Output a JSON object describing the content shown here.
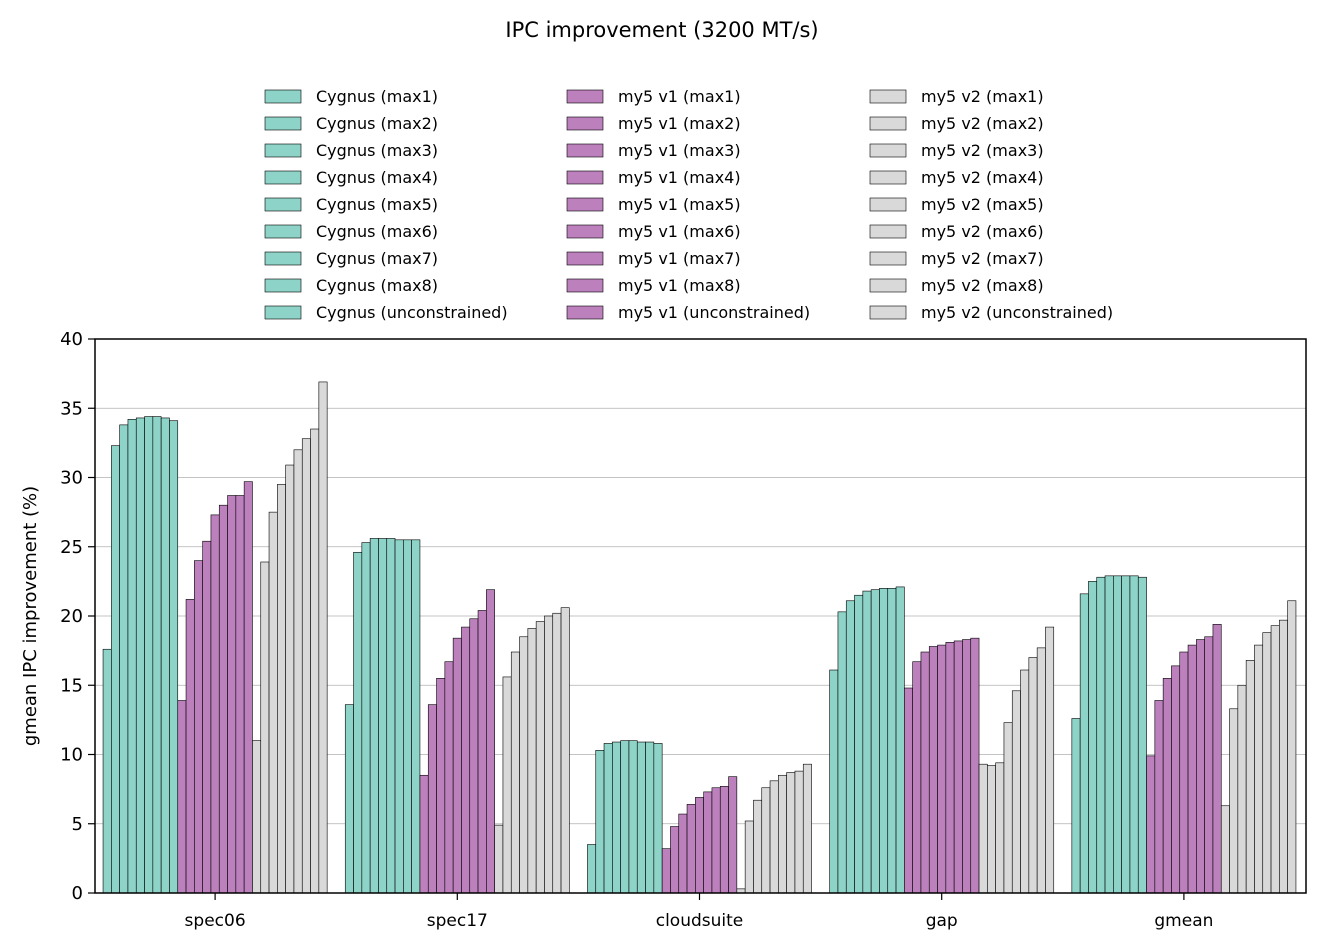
{
  "chart_data": {
    "type": "bar",
    "title": "IPC improvement (3200 MT/s)",
    "xlabel": "",
    "ylabel": "gmean IPC improvement (%)",
    "ylim": [
      0,
      40
    ],
    "yticks": [
      0,
      5,
      10,
      15,
      20,
      25,
      30,
      35,
      40
    ],
    "grid": "horizontal",
    "legend_placement": "top-center, 3 columns, outside plot",
    "categories": [
      "spec06",
      "spec17",
      "cloudsuite",
      "gap",
      "gmean"
    ],
    "colors": {
      "cygnus": "#8dd3c7",
      "my5_v1": "#bc80bd",
      "my5_v2": "#d9d9d9",
      "edge": "#000000",
      "grid": "#b0b0b0"
    },
    "series": [
      {
        "name": "Cygnus (max1)",
        "group": "cygnus",
        "values": [
          17.6,
          13.6,
          3.5,
          16.1,
          12.6
        ]
      },
      {
        "name": "Cygnus (max2)",
        "group": "cygnus",
        "values": [
          32.3,
          24.6,
          10.3,
          20.3,
          21.6
        ]
      },
      {
        "name": "Cygnus (max3)",
        "group": "cygnus",
        "values": [
          33.8,
          25.3,
          10.8,
          21.1,
          22.5
        ]
      },
      {
        "name": "Cygnus (max4)",
        "group": "cygnus",
        "values": [
          34.2,
          25.6,
          10.9,
          21.5,
          22.8
        ]
      },
      {
        "name": "Cygnus (max5)",
        "group": "cygnus",
        "values": [
          34.3,
          25.6,
          11.0,
          21.8,
          22.9
        ]
      },
      {
        "name": "Cygnus (max6)",
        "group": "cygnus",
        "values": [
          34.4,
          25.6,
          11.0,
          21.9,
          22.9
        ]
      },
      {
        "name": "Cygnus (max7)",
        "group": "cygnus",
        "values": [
          34.4,
          25.5,
          10.9,
          22.0,
          22.9
        ]
      },
      {
        "name": "Cygnus (max8)",
        "group": "cygnus",
        "values": [
          34.3,
          25.5,
          10.9,
          22.0,
          22.9
        ]
      },
      {
        "name": "Cygnus (unconstrained)",
        "group": "cygnus",
        "values": [
          34.1,
          25.5,
          10.8,
          22.1,
          22.8
        ]
      },
      {
        "name": "my5 v1 (max1)",
        "group": "my5_v1",
        "values": [
          13.9,
          8.5,
          3.2,
          14.8,
          9.9
        ]
      },
      {
        "name": "my5 v1 (max2)",
        "group": "my5_v1",
        "values": [
          21.2,
          13.6,
          4.8,
          16.7,
          13.9
        ]
      },
      {
        "name": "my5 v1 (max3)",
        "group": "my5_v1",
        "values": [
          24.0,
          15.5,
          5.7,
          17.4,
          15.5
        ]
      },
      {
        "name": "my5 v1 (max4)",
        "group": "my5_v1",
        "values": [
          25.4,
          16.7,
          6.4,
          17.8,
          16.4
        ]
      },
      {
        "name": "my5 v1 (max5)",
        "group": "my5_v1",
        "values": [
          27.3,
          18.4,
          6.9,
          17.9,
          17.4
        ]
      },
      {
        "name": "my5 v1 (max6)",
        "group": "my5_v1",
        "values": [
          28.0,
          19.2,
          7.3,
          18.1,
          17.9
        ]
      },
      {
        "name": "my5 v1 (max7)",
        "group": "my5_v1",
        "values": [
          28.7,
          19.8,
          7.6,
          18.2,
          18.3
        ]
      },
      {
        "name": "my5 v1 (max8)",
        "group": "my5_v1",
        "values": [
          28.7,
          20.4,
          7.7,
          18.3,
          18.5
        ]
      },
      {
        "name": "my5 v1 (unconstrained)",
        "group": "my5_v1",
        "values": [
          29.7,
          21.9,
          8.4,
          18.4,
          19.4
        ]
      },
      {
        "name": "my5 v2 (max1)",
        "group": "my5_v2",
        "values": [
          11.0,
          4.9,
          0.3,
          9.3,
          6.3
        ]
      },
      {
        "name": "my5 v2 (max2)",
        "group": "my5_v2",
        "values": [
          23.9,
          15.6,
          5.2,
          9.2,
          13.3
        ]
      },
      {
        "name": "my5 v2 (max3)",
        "group": "my5_v2",
        "values": [
          27.5,
          17.4,
          6.7,
          9.4,
          15.0
        ]
      },
      {
        "name": "my5 v2 (max4)",
        "group": "my5_v2",
        "values": [
          29.5,
          18.5,
          7.6,
          12.3,
          16.8
        ]
      },
      {
        "name": "my5 v2 (max5)",
        "group": "my5_v2",
        "values": [
          30.9,
          19.1,
          8.1,
          14.6,
          17.9
        ]
      },
      {
        "name": "my5 v2 (max6)",
        "group": "my5_v2",
        "values": [
          32.0,
          19.6,
          8.5,
          16.1,
          18.8
        ]
      },
      {
        "name": "my5 v2 (max7)",
        "group": "my5_v2",
        "values": [
          32.8,
          20.0,
          8.7,
          17.0,
          19.3
        ]
      },
      {
        "name": "my5 v2 (max8)",
        "group": "my5_v2",
        "values": [
          33.5,
          20.2,
          8.8,
          17.7,
          19.7
        ]
      },
      {
        "name": "my5 v2 (unconstrained)",
        "group": "my5_v2",
        "values": [
          36.9,
          20.6,
          9.3,
          19.2,
          21.1
        ]
      }
    ]
  }
}
